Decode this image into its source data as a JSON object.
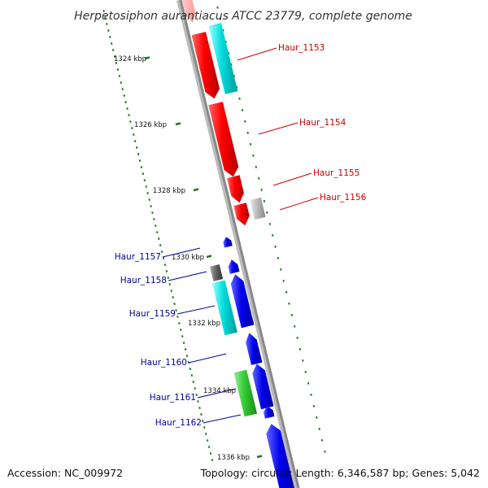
{
  "title": "Herpetosiphon aurantiacus ATCC 23779, complete genome",
  "accession": "Accession: NC_009972",
  "summary": "Topology: circular; Length: 6,346,587 bp; Genes: 5,042",
  "colors": {
    "forward_label": "#cc0000",
    "reverse_label": "#000099",
    "backbone": "#888888",
    "tick": "#227722",
    "red_gene": "#ff0000",
    "blue_gene": "#0000ee",
    "cyan_gene": "#00dddd",
    "green_gene": "#33cc33",
    "gray_gene": "#777777",
    "lightgray_gene": "#bbbbbb"
  },
  "ticks": [
    {
      "label": "1324 kbp"
    },
    {
      "label": "1326 kbp"
    },
    {
      "label": "1328 kbp"
    },
    {
      "label": "1330 kbp"
    },
    {
      "label": "1332 kbp"
    },
    {
      "label": "1334 kbp"
    },
    {
      "label": "1336 kbp"
    }
  ],
  "genes": [
    {
      "label": "Haur_1153",
      "strand": "forward"
    },
    {
      "label": "Haur_1154",
      "strand": "forward"
    },
    {
      "label": "Haur_1155",
      "strand": "forward"
    },
    {
      "label": "Haur_1156",
      "strand": "forward"
    },
    {
      "label": "Haur_1157",
      "strand": "reverse"
    },
    {
      "label": "Haur_1158",
      "strand": "reverse"
    },
    {
      "label": "Haur_1159",
      "strand": "reverse"
    },
    {
      "label": "Haur_1160",
      "strand": "reverse"
    },
    {
      "label": "Haur_1161",
      "strand": "reverse"
    },
    {
      "label": "Haur_1162",
      "strand": "reverse"
    }
  ]
}
